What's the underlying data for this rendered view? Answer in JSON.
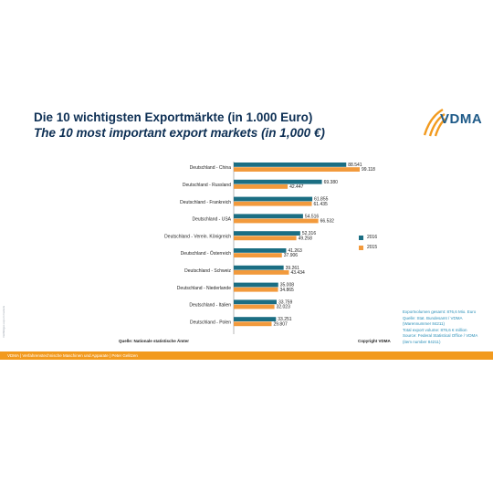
{
  "title_de": "Die 10 wichtigsten Exportmärkte (in 1.000 Euro)",
  "title_en": "The 10 most important export markets (in 1,000 €)",
  "logo": {
    "text": "VDMA"
  },
  "side_label": "Vielfältiges export markets",
  "legend": [
    {
      "label": "2016",
      "color": "#1b6e83"
    },
    {
      "label": "2015",
      "color": "#f29a3c"
    }
  ],
  "info": [
    "Exportvolumen gesamt: 876,6 Mio. Euro",
    "Quelle: Stat. Bundesamt / VDMA",
    "(Warennummer 84211)",
    "Total export volume: 876,6 € million",
    "Source: Federal Statistical Office / VDMA",
    "(item number 84211)"
  ],
  "source": "Quelle: Nationale statistische Ämter",
  "copyright": "Copyright VDMA",
  "footer": "VDMA  |  Verfahrenstechnische Maschinen und Apparate | Peter Gelitzen",
  "chart_data": {
    "type": "bar",
    "orientation": "horizontal",
    "categories": [
      "Deutschland - China",
      "Deutschland - Russland",
      "Deutschland - Frankreich",
      "Deutschland - USA",
      "Deutschland - Verein. Königreich",
      "Deutschland - Österreich",
      "Deutschland - Schweiz",
      "Deutschland - Niederlande",
      "Deutschland - Italien",
      "Deutschland - Polen"
    ],
    "series": [
      {
        "name": "2016",
        "color": "#1b6e83",
        "values": [
          88541,
          69380,
          61855,
          54516,
          52316,
          41263,
          39261,
          35008,
          33759,
          33251
        ],
        "labels": [
          "88.541",
          "69.380",
          "61.855",
          "54.516",
          "52.316",
          "41.263",
          "39.261",
          "35.008",
          "33.759",
          "33.251"
        ]
      },
      {
        "name": "2015",
        "color": "#f29a3c",
        "values": [
          99118,
          42447,
          61435,
          66532,
          49258,
          37906,
          43434,
          34865,
          32023,
          29807
        ],
        "labels": [
          "99.118",
          "42.447",
          "61.435",
          "66.532",
          "49.258",
          "37.906",
          "43.434",
          "34.865",
          "32.023",
          "29.807"
        ]
      }
    ],
    "xlim": [
      0,
      120000
    ],
    "grid": false,
    "legend_position": "right"
  }
}
